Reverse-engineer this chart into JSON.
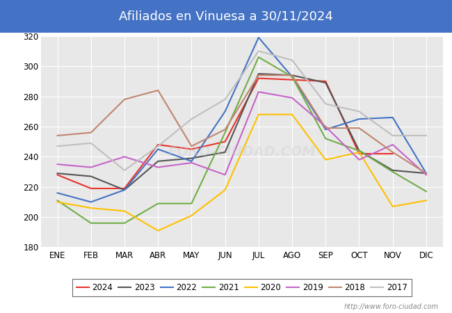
{
  "title": "Afiliados en Vinuesa a 30/11/2024",
  "title_bg_color": "#4472c4",
  "title_color": "white",
  "xlabel": "",
  "ylabel": "",
  "ylim": [
    180,
    320
  ],
  "yticks": [
    180,
    200,
    220,
    240,
    260,
    280,
    300,
    320
  ],
  "months": [
    "ENE",
    "FEB",
    "MAR",
    "ABR",
    "MAY",
    "JUN",
    "JUL",
    "AGO",
    "SEP",
    "OCT",
    "NOV",
    "DIC"
  ],
  "watermark": "http://www.foro-ciudad.com",
  "bg_color": "#e8e8e8",
  "grid_color": "white",
  "series": [
    {
      "label": "2024",
      "color": "#e8312a",
      "linewidth": 1.5,
      "data": [
        228,
        219,
        219,
        248,
        245,
        250,
        292,
        291,
        290,
        242,
        242,
        null
      ]
    },
    {
      "label": "2023",
      "color": "#555555",
      "linewidth": 1.5,
      "data": [
        229,
        227,
        218,
        237,
        239,
        243,
        295,
        294,
        289,
        244,
        231,
        229
      ]
    },
    {
      "label": "2022",
      "color": "#4472c4",
      "linewidth": 1.5,
      "data": [
        216,
        210,
        218,
        245,
        237,
        270,
        319,
        293,
        258,
        265,
        266,
        229
      ]
    },
    {
      "label": "2021",
      "color": "#70ad47",
      "linewidth": 1.5,
      "data": [
        211,
        196,
        196,
        209,
        209,
        256,
        306,
        293,
        252,
        244,
        230,
        217
      ]
    },
    {
      "label": "2020",
      "color": "#ffc000",
      "linewidth": 1.5,
      "data": [
        210,
        206,
        204,
        191,
        201,
        218,
        268,
        268,
        238,
        243,
        207,
        211
      ]
    },
    {
      "label": "2019",
      "color": "#c564c8",
      "linewidth": 1.5,
      "data": [
        235,
        233,
        240,
        233,
        236,
        228,
        283,
        279,
        260,
        238,
        248,
        228
      ]
    },
    {
      "label": "2018",
      "color": "#c0856e",
      "linewidth": 1.5,
      "data": [
        254,
        256,
        278,
        284,
        247,
        258,
        294,
        294,
        259,
        259,
        243,
        229
      ]
    },
    {
      "label": "2017",
      "color": "#bfbfbf",
      "linewidth": 1.5,
      "data": [
        247,
        249,
        231,
        247,
        265,
        278,
        310,
        304,
        275,
        270,
        254,
        254
      ]
    }
  ]
}
